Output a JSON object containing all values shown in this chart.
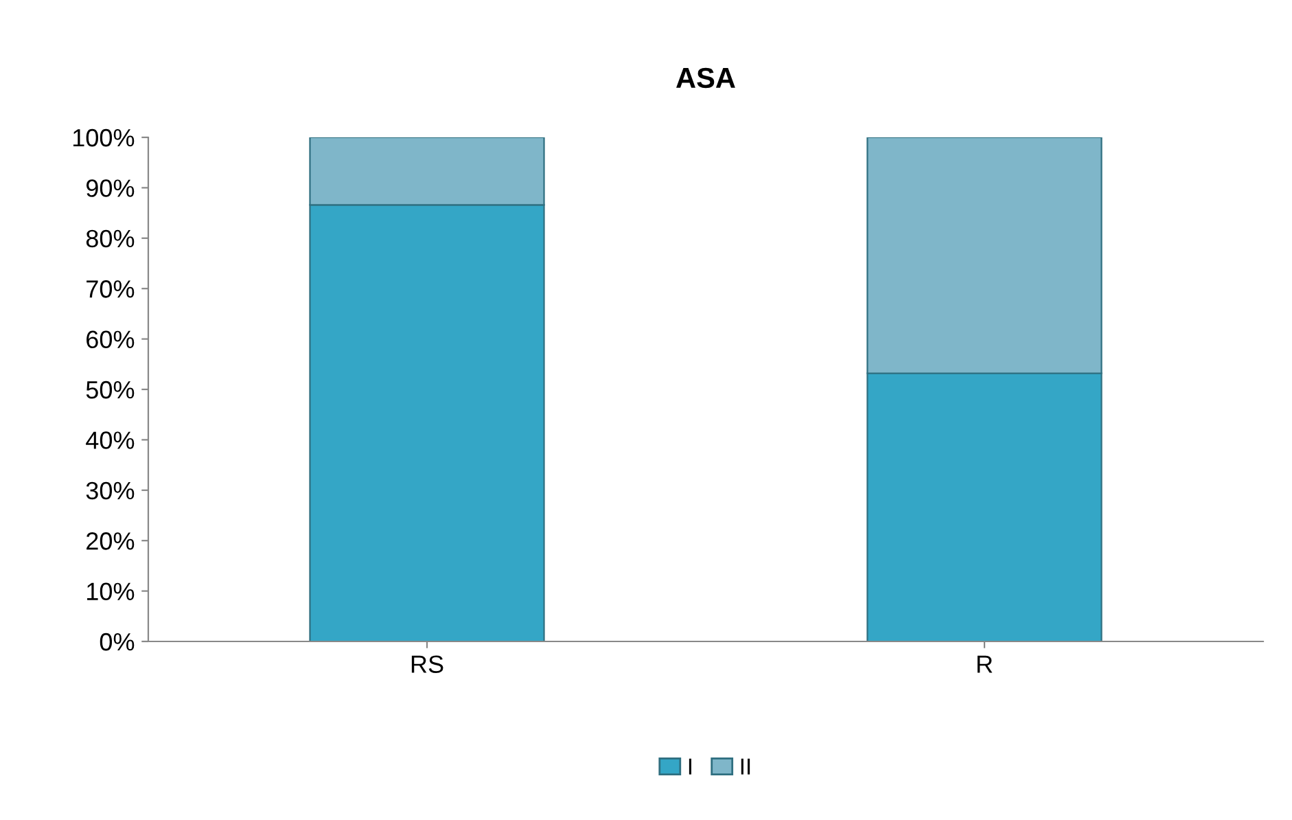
{
  "chart_data": {
    "type": "bar",
    "title": "ASA",
    "categories": [
      "RS",
      "R"
    ],
    "stacked": true,
    "series": [
      {
        "name": "I",
        "color": "#34a6c6",
        "values": [
          86.6,
          53.2
        ]
      },
      {
        "name": "II",
        "color": "#7fb6c9",
        "values": [
          13.4,
          46.8
        ]
      }
    ],
    "ylim": [
      0,
      100
    ],
    "yticks": [
      {
        "value": 0,
        "label": "0%"
      },
      {
        "value": 10,
        "label": "10%"
      },
      {
        "value": 20,
        "label": "20%"
      },
      {
        "value": 30,
        "label": "30%"
      },
      {
        "value": 40,
        "label": "40%"
      },
      {
        "value": 50,
        "label": "50%"
      },
      {
        "value": 60,
        "label": "60%"
      },
      {
        "value": 70,
        "label": "70%"
      },
      {
        "value": 80,
        "label": "80%"
      },
      {
        "value": 90,
        "label": "90%"
      },
      {
        "value": 100,
        "label": "100%"
      }
    ],
    "grid": false,
    "legend": "bottom"
  }
}
